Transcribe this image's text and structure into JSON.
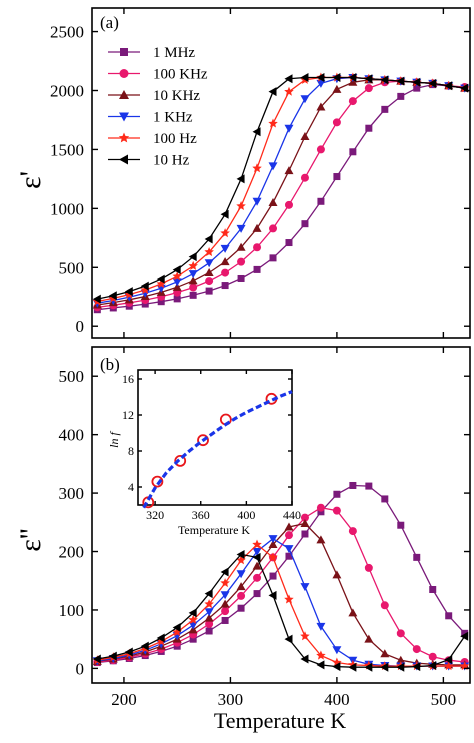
{
  "figure": {
    "xlabel": "Temperature K"
  },
  "chart_data": [
    {
      "type": "line",
      "panel_label": "(a)",
      "xlabel": "",
      "ylabel": "ε'",
      "xlim": [
        170,
        525
      ],
      "ylim": [
        -100,
        2700
      ],
      "yticks": [
        0,
        500,
        1000,
        1500,
        2000,
        2500
      ],
      "xticks": [
        200,
        300,
        400,
        500
      ],
      "legend": "top-left",
      "series": [
        {
          "name": "1 MHz",
          "color": "#7a1a7a",
          "marker": "square",
          "x": [
            175,
            190,
            205,
            220,
            235,
            250,
            265,
            280,
            295,
            310,
            325,
            340,
            355,
            370,
            385,
            400,
            415,
            430,
            445,
            460,
            475,
            490,
            505,
            520
          ],
          "y": [
            140,
            155,
            170,
            188,
            208,
            232,
            262,
            298,
            345,
            405,
            482,
            580,
            710,
            870,
            1060,
            1270,
            1480,
            1680,
            1840,
            1950,
            2020,
            2050,
            2040,
            2020
          ]
        },
        {
          "name": "100 KHz",
          "color": "#e8186d",
          "marker": "circle",
          "x": [
            175,
            190,
            205,
            220,
            235,
            250,
            265,
            280,
            295,
            310,
            325,
            340,
            355,
            370,
            385,
            400,
            415,
            430,
            445,
            460,
            475,
            490,
            505,
            520
          ],
          "y": [
            160,
            178,
            198,
            222,
            250,
            285,
            328,
            383,
            455,
            548,
            670,
            830,
            1030,
            1260,
            1500,
            1730,
            1910,
            2020,
            2070,
            2080,
            2070,
            2060,
            2040,
            2030
          ]
        },
        {
          "name": "10 KHz",
          "color": "#7a1218",
          "marker": "triangle-up",
          "x": [
            175,
            190,
            205,
            220,
            235,
            250,
            265,
            280,
            295,
            310,
            325,
            340,
            355,
            370,
            385,
            400,
            415,
            430,
            445,
            460,
            475,
            490,
            505,
            520
          ],
          "y": [
            180,
            200,
            224,
            252,
            287,
            330,
            385,
            456,
            548,
            670,
            830,
            1050,
            1320,
            1610,
            1860,
            2010,
            2070,
            2090,
            2090,
            2080,
            2070,
            2060,
            2040,
            2020
          ]
        },
        {
          "name": "1 KHz",
          "color": "#1a35e8",
          "marker": "triangle-down",
          "x": [
            175,
            190,
            205,
            220,
            235,
            250,
            265,
            280,
            295,
            310,
            325,
            340,
            355,
            370,
            385,
            400,
            415,
            430,
            445,
            460,
            475,
            490,
            505,
            520
          ],
          "y": [
            195,
            218,
            246,
            280,
            322,
            376,
            446,
            538,
            660,
            830,
            1060,
            1360,
            1680,
            1930,
            2060,
            2100,
            2110,
            2100,
            2090,
            2080,
            2070,
            2060,
            2040,
            2020
          ]
        },
        {
          "name": "100 Hz",
          "color": "#ff2a1a",
          "marker": "star",
          "x": [
            175,
            190,
            205,
            220,
            235,
            250,
            265,
            280,
            295,
            310,
            325,
            340,
            355,
            370,
            385,
            400,
            415,
            430,
            445,
            460,
            475,
            490,
            505,
            520
          ],
          "y": [
            210,
            236,
            268,
            307,
            358,
            424,
            512,
            630,
            790,
            1020,
            1340,
            1720,
            1990,
            2090,
            2110,
            2110,
            2110,
            2100,
            2090,
            2080,
            2070,
            2060,
            2040,
            2020
          ]
        },
        {
          "name": "10 Hz",
          "color": "#000000",
          "marker": "triangle-left",
          "x": [
            175,
            190,
            205,
            220,
            235,
            250,
            265,
            280,
            295,
            310,
            325,
            340,
            355,
            370,
            385,
            400,
            415,
            430,
            445,
            460,
            475,
            490,
            505,
            520
          ],
          "y": [
            230,
            258,
            294,
            340,
            400,
            480,
            590,
            740,
            950,
            1250,
            1650,
            1990,
            2100,
            2110,
            2110,
            2110,
            2110,
            2100,
            2090,
            2080,
            2070,
            2060,
            2040,
            2020
          ]
        }
      ]
    },
    {
      "type": "line",
      "panel_label": "(b)",
      "xlabel": "Temperature K",
      "ylabel": "ε''",
      "xlim": [
        170,
        525
      ],
      "ylim": [
        -25,
        550
      ],
      "yticks": [
        0,
        100,
        200,
        300,
        400,
        500
      ],
      "xticks": [
        200,
        300,
        400,
        500
      ],
      "series": [
        {
          "name": "1 MHz",
          "color": "#7a1a7a",
          "marker": "square",
          "x": [
            175,
            190,
            205,
            220,
            235,
            250,
            265,
            280,
            295,
            310,
            325,
            340,
            355,
            370,
            385,
            400,
            415,
            430,
            445,
            460,
            475,
            490,
            505,
            520
          ],
          "y": [
            10,
            13,
            17,
            22,
            29,
            38,
            50,
            64,
            82,
            103,
            128,
            158,
            192,
            230,
            268,
            298,
            313,
            312,
            290,
            245,
            190,
            135,
            90,
            60
          ]
        },
        {
          "name": "100 KHz",
          "color": "#e8186d",
          "marker": "circle",
          "x": [
            175,
            190,
            205,
            220,
            235,
            250,
            265,
            280,
            295,
            310,
            325,
            340,
            355,
            370,
            385,
            400,
            415,
            430,
            445,
            460,
            475,
            490,
            505,
            520
          ],
          "y": [
            11,
            14,
            19,
            25,
            33,
            44,
            58,
            76,
            98,
            124,
            155,
            190,
            228,
            258,
            275,
            270,
            235,
            172,
            108,
            60,
            33,
            20,
            14,
            11
          ]
        },
        {
          "name": "10 KHz",
          "color": "#7a1218",
          "marker": "triangle-up",
          "x": [
            175,
            190,
            205,
            220,
            235,
            250,
            265,
            280,
            295,
            310,
            325,
            340,
            355,
            370,
            385,
            400,
            415,
            430,
            445,
            460,
            475,
            490,
            505,
            520
          ],
          "y": [
            12,
            16,
            21,
            28,
            38,
            50,
            66,
            86,
            110,
            140,
            175,
            212,
            242,
            248,
            220,
            160,
            95,
            50,
            25,
            14,
            9,
            7,
            6,
            6
          ]
        },
        {
          "name": "1 KHz",
          "color": "#1a35e8",
          "marker": "triangle-down",
          "x": [
            175,
            190,
            205,
            220,
            235,
            250,
            265,
            280,
            295,
            310,
            325,
            340,
            355,
            370,
            385,
            400,
            415,
            430,
            445,
            460,
            475,
            490,
            505,
            520
          ],
          "y": [
            13,
            17,
            23,
            31,
            42,
            56,
            74,
            97,
            126,
            162,
            200,
            222,
            205,
            140,
            72,
            32,
            14,
            7,
            5,
            4,
            4,
            4,
            4,
            4
          ]
        },
        {
          "name": "100 Hz",
          "color": "#ff2a1a",
          "marker": "star",
          "x": [
            175,
            190,
            205,
            220,
            235,
            250,
            265,
            280,
            295,
            310,
            325,
            340,
            355,
            370,
            385,
            400,
            415,
            430,
            445,
            460,
            475,
            490,
            505,
            520
          ],
          "y": [
            14,
            19,
            25,
            34,
            46,
            62,
            83,
            110,
            146,
            185,
            212,
            190,
            118,
            55,
            22,
            10,
            6,
            5,
            4,
            4,
            4,
            4,
            4,
            4
          ]
        },
        {
          "name": "10 Hz",
          "color": "#000000",
          "marker": "triangle-left",
          "x": [
            175,
            190,
            205,
            220,
            235,
            250,
            265,
            280,
            295,
            310,
            325,
            340,
            355,
            370,
            385,
            400,
            415,
            430,
            445,
            460,
            475,
            490,
            505,
            520
          ],
          "y": [
            16,
            21,
            28,
            38,
            52,
            70,
            95,
            128,
            165,
            195,
            190,
            125,
            50,
            16,
            6,
            3,
            2,
            2,
            2,
            2,
            3,
            5,
            15,
            55
          ]
        }
      ]
    },
    {
      "type": "scatter",
      "panel": "(b) inset",
      "xlabel": "Temperature K",
      "ylabel": "ln f",
      "xlim": [
        305,
        440
      ],
      "ylim": [
        2,
        17
      ],
      "xticks": [
        320,
        360,
        400,
        440
      ],
      "yticks": [
        4,
        8,
        12,
        16
      ],
      "series": [
        {
          "name": "",
          "color": "#e8161b",
          "marker": "open-circle",
          "x": [
            314,
            322,
            342,
            362,
            382,
            422
          ],
          "y": [
            2.3,
            4.6,
            6.9,
            9.2,
            11.5,
            13.8
          ]
        },
        {
          "name": "",
          "color": "#1a35e8",
          "marker": "dashed-line",
          "x": [
            310,
            320,
            330,
            340,
            350,
            360,
            370,
            380,
            390,
            400,
            410,
            420,
            430,
            440
          ],
          "y": [
            1.7,
            3.9,
            5.6,
            6.9,
            8.0,
            9.0,
            9.9,
            10.8,
            11.6,
            12.3,
            12.9,
            13.5,
            14.1,
            14.6
          ]
        }
      ]
    }
  ]
}
